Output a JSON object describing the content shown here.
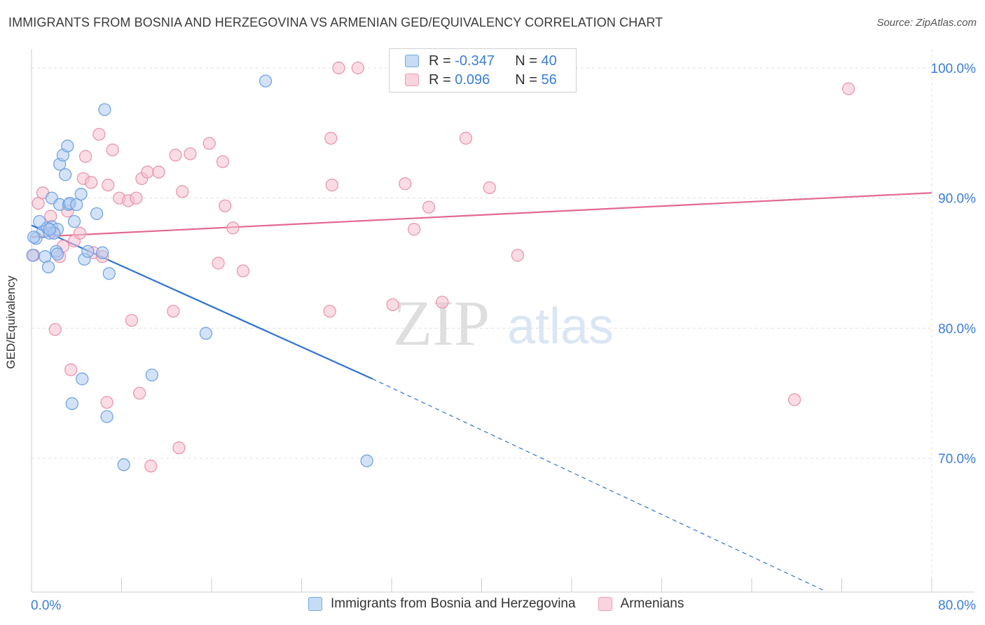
{
  "title": "IMMIGRANTS FROM BOSNIA AND HERZEGOVINA VS ARMENIAN GED/EQUIVALENCY CORRELATION CHART",
  "source": "Source: ZipAtlas.com",
  "watermark": {
    "zip": "ZIP",
    "atlas": "atlas"
  },
  "legend": {
    "rows": [
      {
        "r_label": "R = ",
        "r_value": "-0.347",
        "n_label": "N = ",
        "n_value": "40"
      },
      {
        "r_label": "R = ",
        "r_value": " 0.096",
        "n_label": "N = ",
        "n_value": "56"
      }
    ]
  },
  "colors": {
    "blue_fill": "#aecbf0",
    "blue_stroke": "#6a9fe0",
    "blue_line": "#2f73d4",
    "pink_fill": "#f6c0d0",
    "pink_stroke": "#e890aa",
    "pink_line": "#e2698f",
    "tick_text": "#3b7dd8",
    "grid": "#e0e0e0"
  },
  "chart_data": {
    "type": "scatter",
    "title": "IMMIGRANTS FROM BOSNIA AND HERZEGOVINA VS ARMENIAN GED/EQUIVALENCY CORRELATION CHART",
    "xlabel": "",
    "ylabel": "GED/Equivalency",
    "xlim": [
      0,
      80
    ],
    "ylim": [
      60,
      102
    ],
    "x_tick_labels": [
      "0.0%",
      "80.0%"
    ],
    "y_ticks": [
      70,
      80,
      90,
      100
    ],
    "y_tick_labels": [
      "70.0%",
      "80.0%",
      "90.0%",
      "100.0%"
    ],
    "grid": true,
    "series": [
      {
        "name": "Immigrants from Bosnia and Herzegovina",
        "color": "blue",
        "R": -0.347,
        "N": 40,
        "trend": {
          "x0": 0,
          "y0": 87.9,
          "x1_solid": 30.3,
          "y1_solid": 76.1,
          "x1_dash": 70.5,
          "y1_dash": 59.8
        },
        "points": [
          [
            0.1,
            85.6
          ],
          [
            0.4,
            86.9
          ],
          [
            0.7,
            88.2
          ],
          [
            1.2,
            85.5
          ],
          [
            1.0,
            87.4
          ],
          [
            1.5,
            84.7
          ],
          [
            1.4,
            87.7
          ],
          [
            1.6,
            87.3
          ],
          [
            1.8,
            87.8
          ],
          [
            1.8,
            90.0
          ],
          [
            2.2,
            85.9
          ],
          [
            2.3,
            85.7
          ],
          [
            2.3,
            87.6
          ],
          [
            2.5,
            89.5
          ],
          [
            2.5,
            92.6
          ],
          [
            2.8,
            93.3
          ],
          [
            3.0,
            91.8
          ],
          [
            3.2,
            94.0
          ],
          [
            3.3,
            89.5
          ],
          [
            3.4,
            89.6
          ],
          [
            3.8,
            88.2
          ],
          [
            4.0,
            89.5
          ],
          [
            4.4,
            90.3
          ],
          [
            4.5,
            76.1
          ],
          [
            4.7,
            85.3
          ],
          [
            5.0,
            85.9
          ],
          [
            5.8,
            88.8
          ],
          [
            3.6,
            74.2
          ],
          [
            6.3,
            85.8
          ],
          [
            6.5,
            96.8
          ],
          [
            6.7,
            73.2
          ],
          [
            6.9,
            84.2
          ],
          [
            8.2,
            69.5
          ],
          [
            10.7,
            76.4
          ],
          [
            15.5,
            79.6
          ],
          [
            20.8,
            99.0
          ],
          [
            29.8,
            69.8
          ],
          [
            2.0,
            87.3
          ],
          [
            1.6,
            87.6
          ],
          [
            0.2,
            87.0
          ]
        ]
      },
      {
        "name": "Armenians",
        "color": "pink",
        "R": 0.096,
        "N": 56,
        "trend": {
          "x0": 0,
          "y0": 87.0,
          "x1": 80,
          "y1": 90.4
        },
        "points": [
          [
            0.2,
            85.6
          ],
          [
            0.6,
            89.6
          ],
          [
            1.0,
            90.4
          ],
          [
            1.7,
            88.6
          ],
          [
            2.0,
            87.3
          ],
          [
            2.1,
            79.9
          ],
          [
            2.5,
            85.5
          ],
          [
            2.8,
            86.3
          ],
          [
            3.2,
            89.0
          ],
          [
            3.5,
            76.8
          ],
          [
            3.8,
            86.7
          ],
          [
            4.3,
            87.3
          ],
          [
            4.6,
            91.5
          ],
          [
            4.8,
            93.2
          ],
          [
            5.3,
            91.2
          ],
          [
            5.5,
            85.8
          ],
          [
            6.0,
            94.9
          ],
          [
            6.3,
            85.5
          ],
          [
            6.7,
            74.3
          ],
          [
            6.8,
            91.0
          ],
          [
            7.2,
            93.7
          ],
          [
            7.8,
            90.0
          ],
          [
            8.6,
            89.8
          ],
          [
            8.9,
            80.6
          ],
          [
            9.3,
            90.0
          ],
          [
            9.6,
            75.0
          ],
          [
            9.8,
            91.5
          ],
          [
            10.3,
            92.0
          ],
          [
            10.6,
            69.4
          ],
          [
            11.3,
            92.0
          ],
          [
            12.6,
            81.3
          ],
          [
            12.8,
            93.3
          ],
          [
            13.1,
            70.8
          ],
          [
            13.4,
            90.5
          ],
          [
            14.1,
            93.4
          ],
          [
            15.8,
            94.2
          ],
          [
            16.6,
            85.0
          ],
          [
            17.0,
            92.8
          ],
          [
            17.2,
            89.4
          ],
          [
            17.9,
            87.7
          ],
          [
            18.8,
            84.4
          ],
          [
            26.5,
            81.3
          ],
          [
            26.6,
            94.6
          ],
          [
            26.7,
            91.0
          ],
          [
            27.3,
            100.0
          ],
          [
            29.0,
            100.0
          ],
          [
            32.1,
            81.8
          ],
          [
            33.2,
            91.1
          ],
          [
            34.0,
            87.6
          ],
          [
            35.3,
            89.3
          ],
          [
            36.5,
            82.0
          ],
          [
            38.6,
            94.6
          ],
          [
            40.7,
            90.8
          ],
          [
            43.2,
            85.6
          ],
          [
            67.8,
            74.5
          ],
          [
            72.6,
            98.4
          ]
        ]
      }
    ]
  }
}
